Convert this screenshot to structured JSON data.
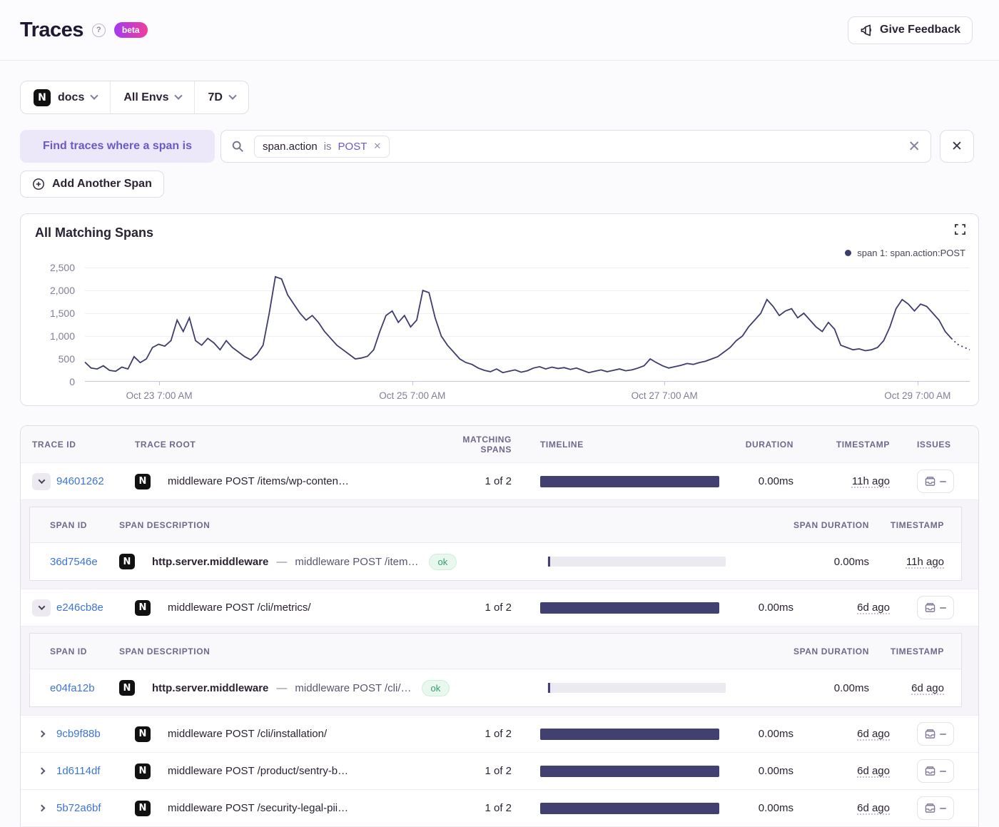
{
  "colors": {
    "accent_purple": "#6C5FC7",
    "chart_line": "#3d3c6e",
    "timeline_bar": "#414070",
    "link_blue": "#3D74DB",
    "ok_green": "#2F9D6E",
    "beta_gradient": [
      "#A13BF1",
      "#F03E9E"
    ]
  },
  "header": {
    "title": "Traces",
    "beta_label": "beta",
    "feedback_label": "Give Feedback"
  },
  "filters": {
    "project": "docs",
    "environment": "All Envs",
    "period": "7D"
  },
  "search": {
    "label": "Find traces where a span is",
    "token": {
      "key": "span.action",
      "op": "is",
      "value": "POST"
    },
    "add_span_label": "Add Another Span"
  },
  "chart_data": {
    "type": "line",
    "title": "All Matching Spans",
    "legend": [
      {
        "label": "span 1: span.action:POST",
        "color": "#3d3c6e"
      }
    ],
    "ylim": [
      0,
      2500
    ],
    "y_ticks": [
      "2,500",
      "2,000",
      "1,500",
      "1,000",
      "500",
      "0"
    ],
    "x_ticks": [
      "Oct 23 7:00 AM",
      "Oct 25 7:00 AM",
      "Oct 27 7:00 AM",
      "Oct 29 7:00 AM"
    ],
    "x_tick_pos_pct": [
      8.4,
      37.0,
      65.5,
      94.1
    ],
    "grid": true,
    "legend_position": "top-right",
    "series": [
      {
        "name": "span 1: span.action:POST",
        "values": [
          430,
          300,
          280,
          350,
          250,
          230,
          320,
          280,
          550,
          420,
          500,
          750,
          820,
          780,
          900,
          1350,
          1100,
          1400,
          900,
          800,
          950,
          850,
          700,
          900,
          750,
          650,
          550,
          480,
          600,
          800,
          1500,
          2300,
          2250,
          1900,
          1700,
          1500,
          1350,
          1450,
          1300,
          1100,
          950,
          800,
          700,
          600,
          500,
          520,
          560,
          700,
          1100,
          1450,
          1550,
          1300,
          1450,
          1200,
          1350,
          2000,
          1950,
          1400,
          1000,
          800,
          650,
          500,
          420,
          380,
          300,
          250,
          220,
          280,
          200,
          230,
          260,
          210,
          240,
          300,
          330,
          280,
          320,
          290,
          310,
          270,
          300,
          250,
          200,
          230,
          260,
          220,
          250,
          280,
          240,
          260,
          300,
          350,
          500,
          420,
          350,
          300,
          330,
          360,
          400,
          380,
          420,
          450,
          500,
          550,
          650,
          750,
          900,
          1000,
          1200,
          1350,
          1500,
          1800,
          1650,
          1450,
          1550,
          1600,
          1400,
          1500,
          1350,
          1200,
          1100,
          1300,
          1150,
          800,
          750,
          700,
          720,
          680,
          700,
          750,
          900,
          1200,
          1600,
          1800,
          1700,
          1550,
          1700,
          1650,
          1500,
          1350,
          1100,
          950
        ]
      }
    ],
    "projected_tail": [
      820,
      760,
      700
    ]
  },
  "table": {
    "columns": [
      "TRACE ID",
      "TRACE ROOT",
      "MATCHING SPANS",
      "TIMELINE",
      "DURATION",
      "TIMESTAMP",
      "ISSUES"
    ],
    "span_columns": [
      "SPAN ID",
      "SPAN DESCRIPTION",
      "SPAN DURATION",
      "TIMESTAMP"
    ],
    "span_separator": "—",
    "rows": [
      {
        "trace_id": "94601262",
        "expanded": true,
        "root": "middleware POST /items/wp-conten…",
        "matching": "1 of 2",
        "duration": "0.00ms",
        "timestamp": "11h ago",
        "spans": [
          {
            "span_id": "36d7546e",
            "op": "http.server.middleware",
            "description": "middleware POST /item…",
            "status": "ok",
            "duration": "0.00ms",
            "timestamp": "11h ago"
          }
        ]
      },
      {
        "trace_id": "e246cb8e",
        "expanded": true,
        "root": "middleware POST /cli/metrics/",
        "matching": "1 of 2",
        "duration": "0.00ms",
        "timestamp": "6d ago",
        "spans": [
          {
            "span_id": "e04fa12b",
            "op": "http.server.middleware",
            "description": "middleware POST /cli/…",
            "status": "ok",
            "duration": "0.00ms",
            "timestamp": "6d ago"
          }
        ]
      },
      {
        "trace_id": "9cb9f88b",
        "expanded": false,
        "root": "middleware POST /cli/installation/",
        "matching": "1 of 2",
        "duration": "0.00ms",
        "timestamp": "6d ago"
      },
      {
        "trace_id": "1d6114df",
        "expanded": false,
        "root": "middleware POST /product/sentry-b…",
        "matching": "1 of 2",
        "duration": "0.00ms",
        "timestamp": "6d ago"
      },
      {
        "trace_id": "5b72a6bf",
        "expanded": false,
        "root": "middleware POST /security-legal-pii…",
        "matching": "1 of 2",
        "duration": "0.00ms",
        "timestamp": "6d ago"
      }
    ]
  }
}
